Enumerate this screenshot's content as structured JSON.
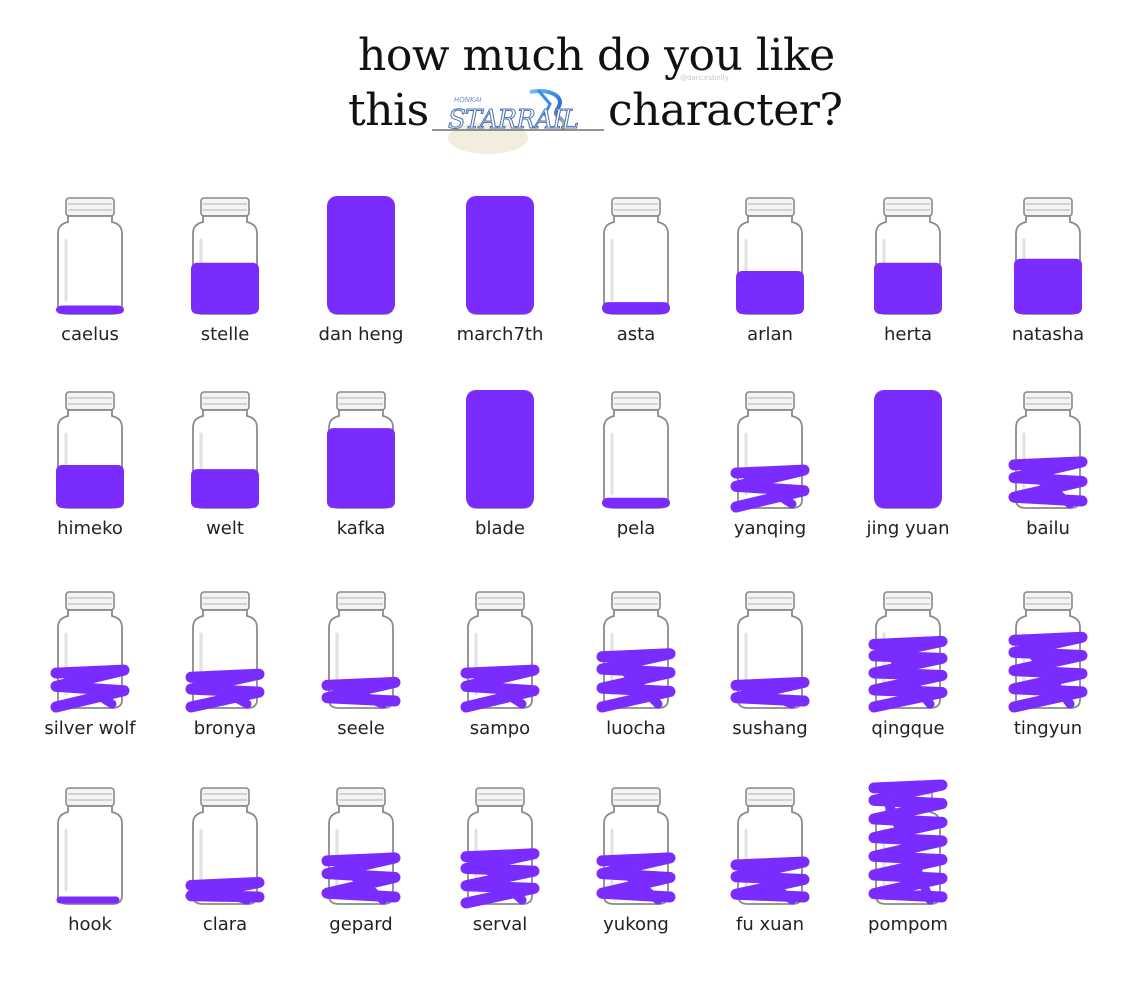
{
  "header": {
    "line1": "how much do you like",
    "line2_before": "this",
    "line2_after": "character?",
    "logo_text": "STAR RAIL",
    "logo_small_text": "HONKAI",
    "watermark": "@dancesbelly"
  },
  "colors": {
    "fill": "#7a2cff",
    "jar_outline": "#8a8a8a",
    "text": "#222222"
  },
  "jars": [
    {
      "label": "caelus",
      "fill_level": 0.08,
      "style": "solid"
    },
    {
      "label": "stelle",
      "fill_level": 0.6,
      "style": "solid"
    },
    {
      "label": "dan heng",
      "fill_level": 1.0,
      "style": "solid"
    },
    {
      "label": "march7th",
      "fill_level": 1.0,
      "style": "solid"
    },
    {
      "label": "asta",
      "fill_level": 0.12,
      "style": "solid"
    },
    {
      "label": "arlan",
      "fill_level": 0.5,
      "style": "solid"
    },
    {
      "label": "herta",
      "fill_level": 0.6,
      "style": "solid"
    },
    {
      "label": "natasha",
      "fill_level": 0.65,
      "style": "solid"
    },
    {
      "label": "himeko",
      "fill_level": 0.5,
      "style": "solid"
    },
    {
      "label": "welt",
      "fill_level": 0.45,
      "style": "solid"
    },
    {
      "label": "kafka",
      "fill_level": 0.95,
      "style": "solid"
    },
    {
      "label": "blade",
      "fill_level": 1.0,
      "style": "solid"
    },
    {
      "label": "pela",
      "fill_level": 0.1,
      "style": "solid"
    },
    {
      "label": "yanqing",
      "fill_level": 0.45,
      "style": "scribble"
    },
    {
      "label": "jing yuan",
      "fill_level": 1.0,
      "style": "solid"
    },
    {
      "label": "bailu",
      "fill_level": 0.55,
      "style": "scribble"
    },
    {
      "label": "silver wolf",
      "fill_level": 0.45,
      "style": "scribble"
    },
    {
      "label": "bronya",
      "fill_level": 0.4,
      "style": "scribble"
    },
    {
      "label": "seele",
      "fill_level": 0.3,
      "style": "scribble"
    },
    {
      "label": "sampo",
      "fill_level": 0.45,
      "style": "scribble"
    },
    {
      "label": "luocha",
      "fill_level": 0.65,
      "style": "scribble"
    },
    {
      "label": "sushang",
      "fill_level": 0.3,
      "style": "scribble"
    },
    {
      "label": "qingque",
      "fill_level": 0.8,
      "style": "scribble"
    },
    {
      "label": "tingyun",
      "fill_level": 0.85,
      "style": "scribble"
    },
    {
      "label": "hook",
      "fill_level": 0.05,
      "style": "line"
    },
    {
      "label": "clara",
      "fill_level": 0.25,
      "style": "scribble"
    },
    {
      "label": "gepard",
      "fill_level": 0.55,
      "style": "scribble"
    },
    {
      "label": "serval",
      "fill_level": 0.6,
      "style": "scribble"
    },
    {
      "label": "yukong",
      "fill_level": 0.55,
      "style": "scribble"
    },
    {
      "label": "fu xuan",
      "fill_level": 0.5,
      "style": "scribble"
    },
    {
      "label": "pompom",
      "fill_level": 1.0,
      "style": "scribble"
    }
  ]
}
